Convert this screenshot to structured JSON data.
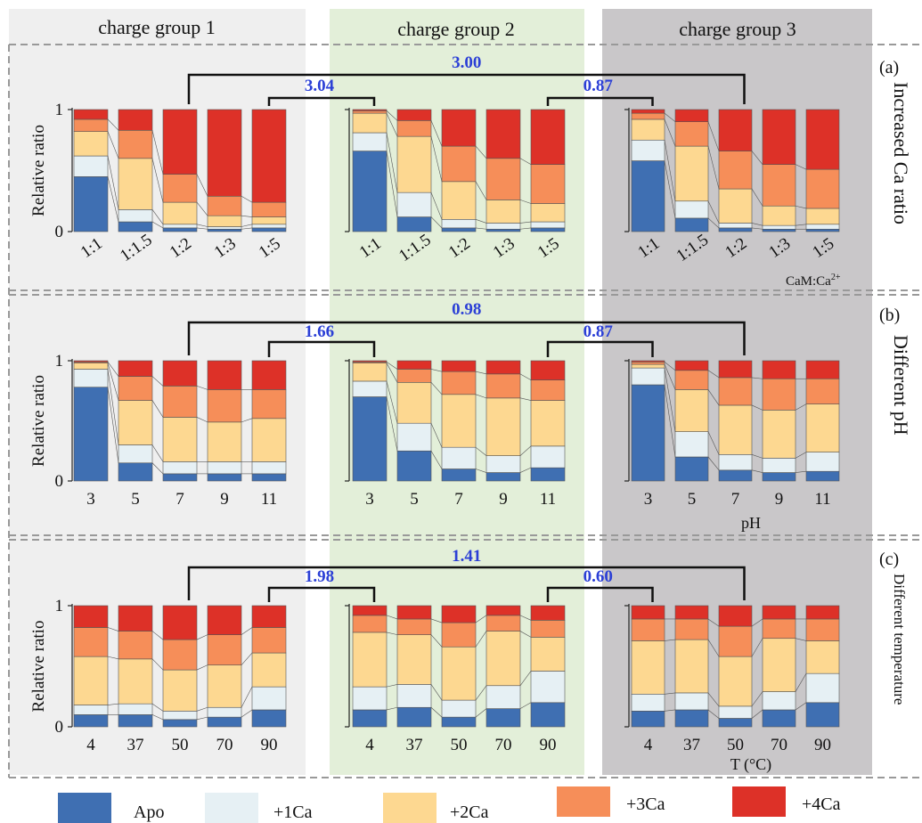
{
  "group_labels": [
    "charge group 1",
    "charge group 2",
    "charge group 3"
  ],
  "row_labels": [
    "(a)",
    "(b)",
    "(c)"
  ],
  "row_titles": [
    "Increased Ca ratio",
    "Different pH",
    "Different temperature"
  ],
  "colors": {
    "Apo": "#3f6fb2",
    "+1Ca": "#e6f0f4",
    "+2Ca": "#fdd891",
    "+3Ca": "#f68e59",
    "+4Ca": "#dd3128",
    "group1_bg": "#efefef",
    "group2_bg": "#e3efd9",
    "group3_bg": "#c9c7c9",
    "ratio_text": "#2b3fd6"
  },
  "legend": [
    "Apo",
    "+1Ca",
    "+2Ca",
    "+3Ca",
    "+4Ca"
  ],
  "chart_data": [
    {
      "type": "bar",
      "stacked": true,
      "row": "a",
      "ylabel": "Relative ratio",
      "yticks": [
        "0",
        "1"
      ],
      "ylim": [
        0,
        1
      ],
      "xlabel": "CaM:Ca",
      "xlabel_sup": "2+",
      "categories": [
        "1:1",
        "1:1.5",
        "1:2",
        "1:3",
        "1:5"
      ],
      "ratios": {
        "outer": "3.00",
        "left": "3.04",
        "right": "0.87"
      },
      "groups": [
        {
          "name": "charge group 1",
          "series": [
            {
              "name": "Apo",
              "values": [
                0.45,
                0.08,
                0.03,
                0.02,
                0.03
              ]
            },
            {
              "name": "+1Ca",
              "values": [
                0.17,
                0.1,
                0.03,
                0.02,
                0.03
              ]
            },
            {
              "name": "+2Ca",
              "values": [
                0.2,
                0.42,
                0.18,
                0.09,
                0.06
              ]
            },
            {
              "name": "+3Ca",
              "values": [
                0.1,
                0.23,
                0.23,
                0.16,
                0.12
              ]
            },
            {
              "name": "+4Ca",
              "values": [
                0.08,
                0.17,
                0.53,
                0.71,
                0.76
              ]
            }
          ]
        },
        {
          "name": "charge group 2",
          "series": [
            {
              "name": "Apo",
              "values": [
                0.66,
                0.12,
                0.03,
                0.02,
                0.03
              ]
            },
            {
              "name": "+1Ca",
              "values": [
                0.15,
                0.2,
                0.07,
                0.05,
                0.05
              ]
            },
            {
              "name": "+2Ca",
              "values": [
                0.16,
                0.46,
                0.31,
                0.19,
                0.15
              ]
            },
            {
              "name": "+3Ca",
              "values": [
                0.02,
                0.13,
                0.29,
                0.34,
                0.32
              ]
            },
            {
              "name": "+4Ca",
              "values": [
                0.01,
                0.09,
                0.3,
                0.4,
                0.45
              ]
            }
          ]
        },
        {
          "name": "charge group 3",
          "series": [
            {
              "name": "Apo",
              "values": [
                0.58,
                0.11,
                0.03,
                0.02,
                0.02
              ]
            },
            {
              "name": "+1Ca",
              "values": [
                0.17,
                0.14,
                0.04,
                0.03,
                0.04
              ]
            },
            {
              "name": "+2Ca",
              "values": [
                0.17,
                0.45,
                0.28,
                0.16,
                0.13
              ]
            },
            {
              "name": "+3Ca",
              "values": [
                0.05,
                0.2,
                0.31,
                0.34,
                0.32
              ]
            },
            {
              "name": "+4Ca",
              "values": [
                0.03,
                0.1,
                0.34,
                0.45,
                0.49
              ]
            }
          ]
        }
      ]
    },
    {
      "type": "bar",
      "stacked": true,
      "row": "b",
      "ylabel": "Relative ratio",
      "yticks": [
        "0",
        "1"
      ],
      "ylim": [
        0,
        1
      ],
      "xlabel": "pH",
      "categories": [
        "3",
        "5",
        "7",
        "9",
        "11"
      ],
      "ratios": {
        "outer": "0.98",
        "left": "1.66",
        "right": "0.87"
      },
      "groups": [
        {
          "name": "charge group 1",
          "series": [
            {
              "name": "Apo",
              "values": [
                0.78,
                0.15,
                0.06,
                0.06,
                0.06
              ]
            },
            {
              "name": "+1Ca",
              "values": [
                0.15,
                0.15,
                0.1,
                0.1,
                0.1
              ]
            },
            {
              "name": "+2Ca",
              "values": [
                0.05,
                0.37,
                0.37,
                0.33,
                0.36
              ]
            },
            {
              "name": "+3Ca",
              "values": [
                0.01,
                0.2,
                0.26,
                0.27,
                0.24
              ]
            },
            {
              "name": "+4Ca",
              "values": [
                0.01,
                0.13,
                0.21,
                0.24,
                0.24
              ]
            }
          ]
        },
        {
          "name": "charge group 2",
          "series": [
            {
              "name": "Apo",
              "values": [
                0.7,
                0.25,
                0.1,
                0.07,
                0.11
              ]
            },
            {
              "name": "+1Ca",
              "values": [
                0.13,
                0.23,
                0.18,
                0.14,
                0.18
              ]
            },
            {
              "name": "+2Ca",
              "values": [
                0.15,
                0.34,
                0.44,
                0.48,
                0.38
              ]
            },
            {
              "name": "+3Ca",
              "values": [
                0.01,
                0.11,
                0.19,
                0.2,
                0.17
              ]
            },
            {
              "name": "+4Ca",
              "values": [
                0.01,
                0.07,
                0.09,
                0.11,
                0.16
              ]
            }
          ]
        },
        {
          "name": "charge group 3",
          "series": [
            {
              "name": "Apo",
              "values": [
                0.8,
                0.2,
                0.09,
                0.07,
                0.08
              ]
            },
            {
              "name": "+1Ca",
              "values": [
                0.14,
                0.21,
                0.13,
                0.12,
                0.16
              ]
            },
            {
              "name": "+2Ca",
              "values": [
                0.03,
                0.35,
                0.41,
                0.4,
                0.4
              ]
            },
            {
              "name": "+3Ca",
              "values": [
                0.02,
                0.16,
                0.23,
                0.26,
                0.21
              ]
            },
            {
              "name": "+4Ca",
              "values": [
                0.01,
                0.08,
                0.14,
                0.15,
                0.15
              ]
            }
          ]
        }
      ]
    },
    {
      "type": "bar",
      "stacked": true,
      "row": "c",
      "ylabel": "Relative ratio",
      "yticks": [
        "0",
        "1"
      ],
      "ylim": [
        0,
        1
      ],
      "xlabel": "T (°C)",
      "categories": [
        "4",
        "37",
        "50",
        "70",
        "90"
      ],
      "ratios": {
        "outer": "1.41",
        "left": "1.98",
        "right": "0.60"
      },
      "groups": [
        {
          "name": "charge group 1",
          "series": [
            {
              "name": "Apo",
              "values": [
                0.1,
                0.1,
                0.06,
                0.08,
                0.14
              ]
            },
            {
              "name": "+1Ca",
              "values": [
                0.08,
                0.09,
                0.07,
                0.08,
                0.19
              ]
            },
            {
              "name": "+2Ca",
              "values": [
                0.4,
                0.37,
                0.34,
                0.35,
                0.28
              ]
            },
            {
              "name": "+3Ca",
              "values": [
                0.24,
                0.23,
                0.25,
                0.25,
                0.21
              ]
            },
            {
              "name": "+4Ca",
              "values": [
                0.18,
                0.21,
                0.28,
                0.24,
                0.18
              ]
            }
          ]
        },
        {
          "name": "charge group 2",
          "series": [
            {
              "name": "Apo",
              "values": [
                0.14,
                0.16,
                0.08,
                0.15,
                0.2
              ]
            },
            {
              "name": "+1Ca",
              "values": [
                0.19,
                0.19,
                0.14,
                0.19,
                0.26
              ]
            },
            {
              "name": "+2Ca",
              "values": [
                0.45,
                0.41,
                0.44,
                0.45,
                0.28
              ]
            },
            {
              "name": "+3Ca",
              "values": [
                0.14,
                0.13,
                0.2,
                0.13,
                0.14
              ]
            },
            {
              "name": "+4Ca",
              "values": [
                0.08,
                0.11,
                0.14,
                0.08,
                0.12
              ]
            }
          ]
        },
        {
          "name": "charge group 3",
          "series": [
            {
              "name": "Apo",
              "values": [
                0.13,
                0.14,
                0.07,
                0.14,
                0.2
              ]
            },
            {
              "name": "+1Ca",
              "values": [
                0.14,
                0.14,
                0.1,
                0.15,
                0.24
              ]
            },
            {
              "name": "+2Ca",
              "values": [
                0.44,
                0.44,
                0.41,
                0.44,
                0.27
              ]
            },
            {
              "name": "+3Ca",
              "values": [
                0.18,
                0.17,
                0.25,
                0.16,
                0.18
              ]
            },
            {
              "name": "+4Ca",
              "values": [
                0.11,
                0.11,
                0.17,
                0.11,
                0.11
              ]
            }
          ]
        }
      ]
    }
  ]
}
